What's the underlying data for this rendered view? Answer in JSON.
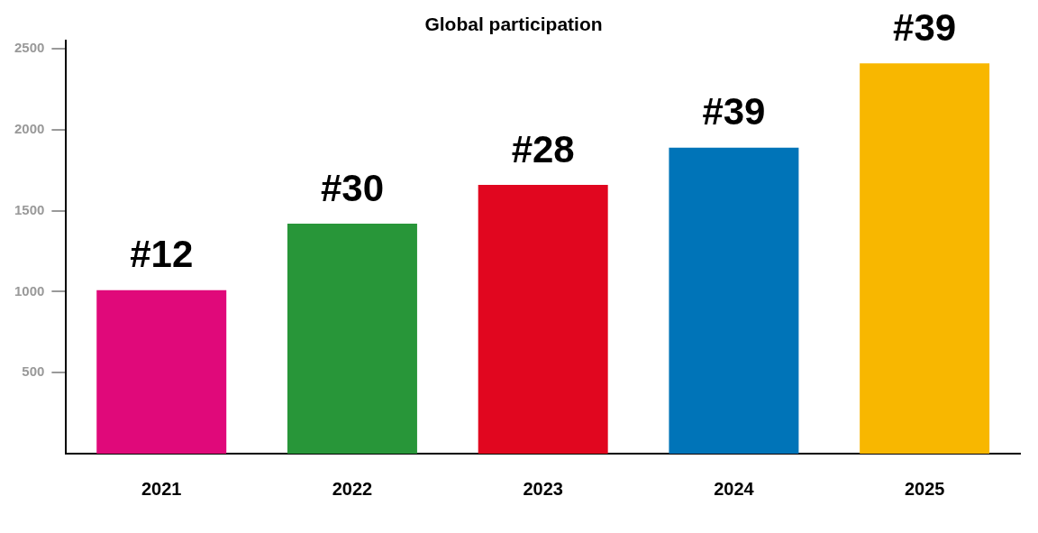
{
  "chart_data": {
    "type": "bar",
    "title": "Global participation",
    "categories": [
      "2021",
      "2022",
      "2023",
      "2024",
      "2025"
    ],
    "values": [
      1010,
      1420,
      1660,
      1890,
      2410
    ],
    "colors": [
      "#e0097a",
      "#289639",
      "#e1061f",
      "#0074b8",
      "#f8b700"
    ],
    "annotations": [
      {
        "text": "#12",
        "x": "2021",
        "y": 1010
      },
      {
        "text": "#30",
        "x": "2022",
        "y": 1420
      },
      {
        "text": "#28",
        "x": "2023",
        "y": 1660
      },
      {
        "text": "#39",
        "x": "2024",
        "y": 1890
      },
      {
        "text": "#39",
        "x": "2025",
        "y": 2410
      }
    ],
    "ylim": [
      0,
      2550
    ],
    "yticks": [
      500,
      1000,
      1500,
      2000,
      2500
    ],
    "grid": false,
    "legend": false
  }
}
